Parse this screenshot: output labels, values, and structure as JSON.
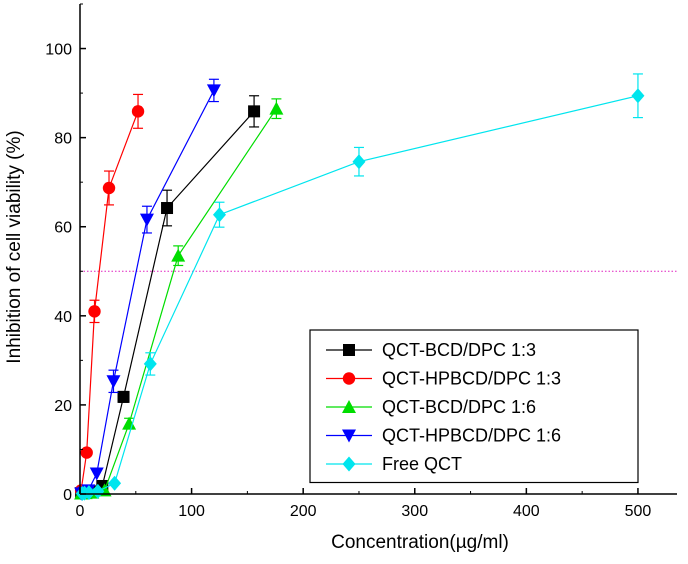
{
  "chart_data": {
    "type": "line",
    "xlabel": "Concentration(µg/ml)",
    "ylabel": "Inhibition of cell viability (%)",
    "xlim": [
      0,
      535
    ],
    "ylim": [
      0,
      110
    ],
    "xticks": [
      0,
      100,
      200,
      300,
      400,
      500
    ],
    "yticks": [
      0,
      20,
      40,
      60,
      80,
      100
    ],
    "grid": false,
    "legend_position": "bottom-right",
    "reference_line": {
      "y": 50,
      "style": "dotted",
      "color": "#e020c0"
    },
    "series": [
      {
        "name": "QCT-BCD/DPC 1:3",
        "color": "#000000",
        "marker": "square",
        "x": [
          1,
          5,
          10,
          20,
          39,
          78,
          156
        ],
        "y": [
          0.2,
          0.4,
          0.6,
          1.8,
          21.8,
          64.2,
          85.9
        ],
        "err": [
          0,
          0,
          0,
          0.5,
          1.2,
          4.0,
          3.5
        ]
      },
      {
        "name": "QCT-HPBCD/DPC 1:3",
        "color": "#ff0000",
        "marker": "circle",
        "x": [
          1,
          6,
          13,
          26,
          52
        ],
        "y": [
          0.8,
          9.3,
          41.0,
          68.7,
          85.9
        ],
        "err": [
          0,
          0,
          2.5,
          3.8,
          3.8
        ]
      },
      {
        "name": "QCT-BCD/DPC 1:6",
        "color": "#00dd00",
        "marker": "triangle-up",
        "x": [
          1,
          5,
          11,
          22,
          44,
          88,
          176
        ],
        "y": [
          0.1,
          0.2,
          0.3,
          0.8,
          15.8,
          53.5,
          86.5
        ],
        "err": [
          0,
          0,
          0,
          0,
          1.2,
          2.2,
          2.2
        ]
      },
      {
        "name": "QCT-HPBCD/DPC 1:6",
        "color": "#0000ff",
        "marker": "triangle-down",
        "x": [
          1,
          4,
          7.5,
          15,
          30,
          60,
          120
        ],
        "y": [
          0.1,
          0.3,
          0.8,
          4.6,
          25.3,
          61.6,
          90.6
        ],
        "err": [
          0,
          0,
          0,
          0,
          2.5,
          3.0,
          2.5
        ]
      },
      {
        "name": "Free QCT",
        "color": "#00e5ee",
        "marker": "diamond",
        "x": [
          2,
          4,
          8,
          16,
          31,
          63,
          125,
          250,
          500
        ],
        "y": [
          0.1,
          0.2,
          0.3,
          0.6,
          2.4,
          29.2,
          62.7,
          74.6,
          89.4
        ],
        "err": [
          0,
          0,
          0,
          0,
          0,
          2.5,
          2.8,
          3.2,
          4.9
        ]
      }
    ]
  }
}
